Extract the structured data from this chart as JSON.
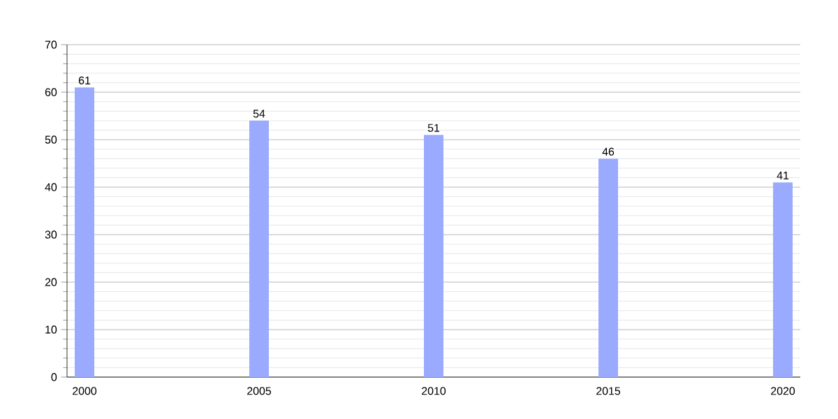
{
  "chart_data": {
    "type": "bar",
    "categories": [
      "2000",
      "2005",
      "2010",
      "2015",
      "2020"
    ],
    "values": [
      61,
      54,
      51,
      46,
      41
    ],
    "color": "#99aaff",
    "ylim": [
      0,
      70
    ],
    "yticks": [
      0,
      10,
      20,
      30,
      40,
      50,
      60,
      70
    ],
    "grid": "y",
    "data_labels": true
  }
}
